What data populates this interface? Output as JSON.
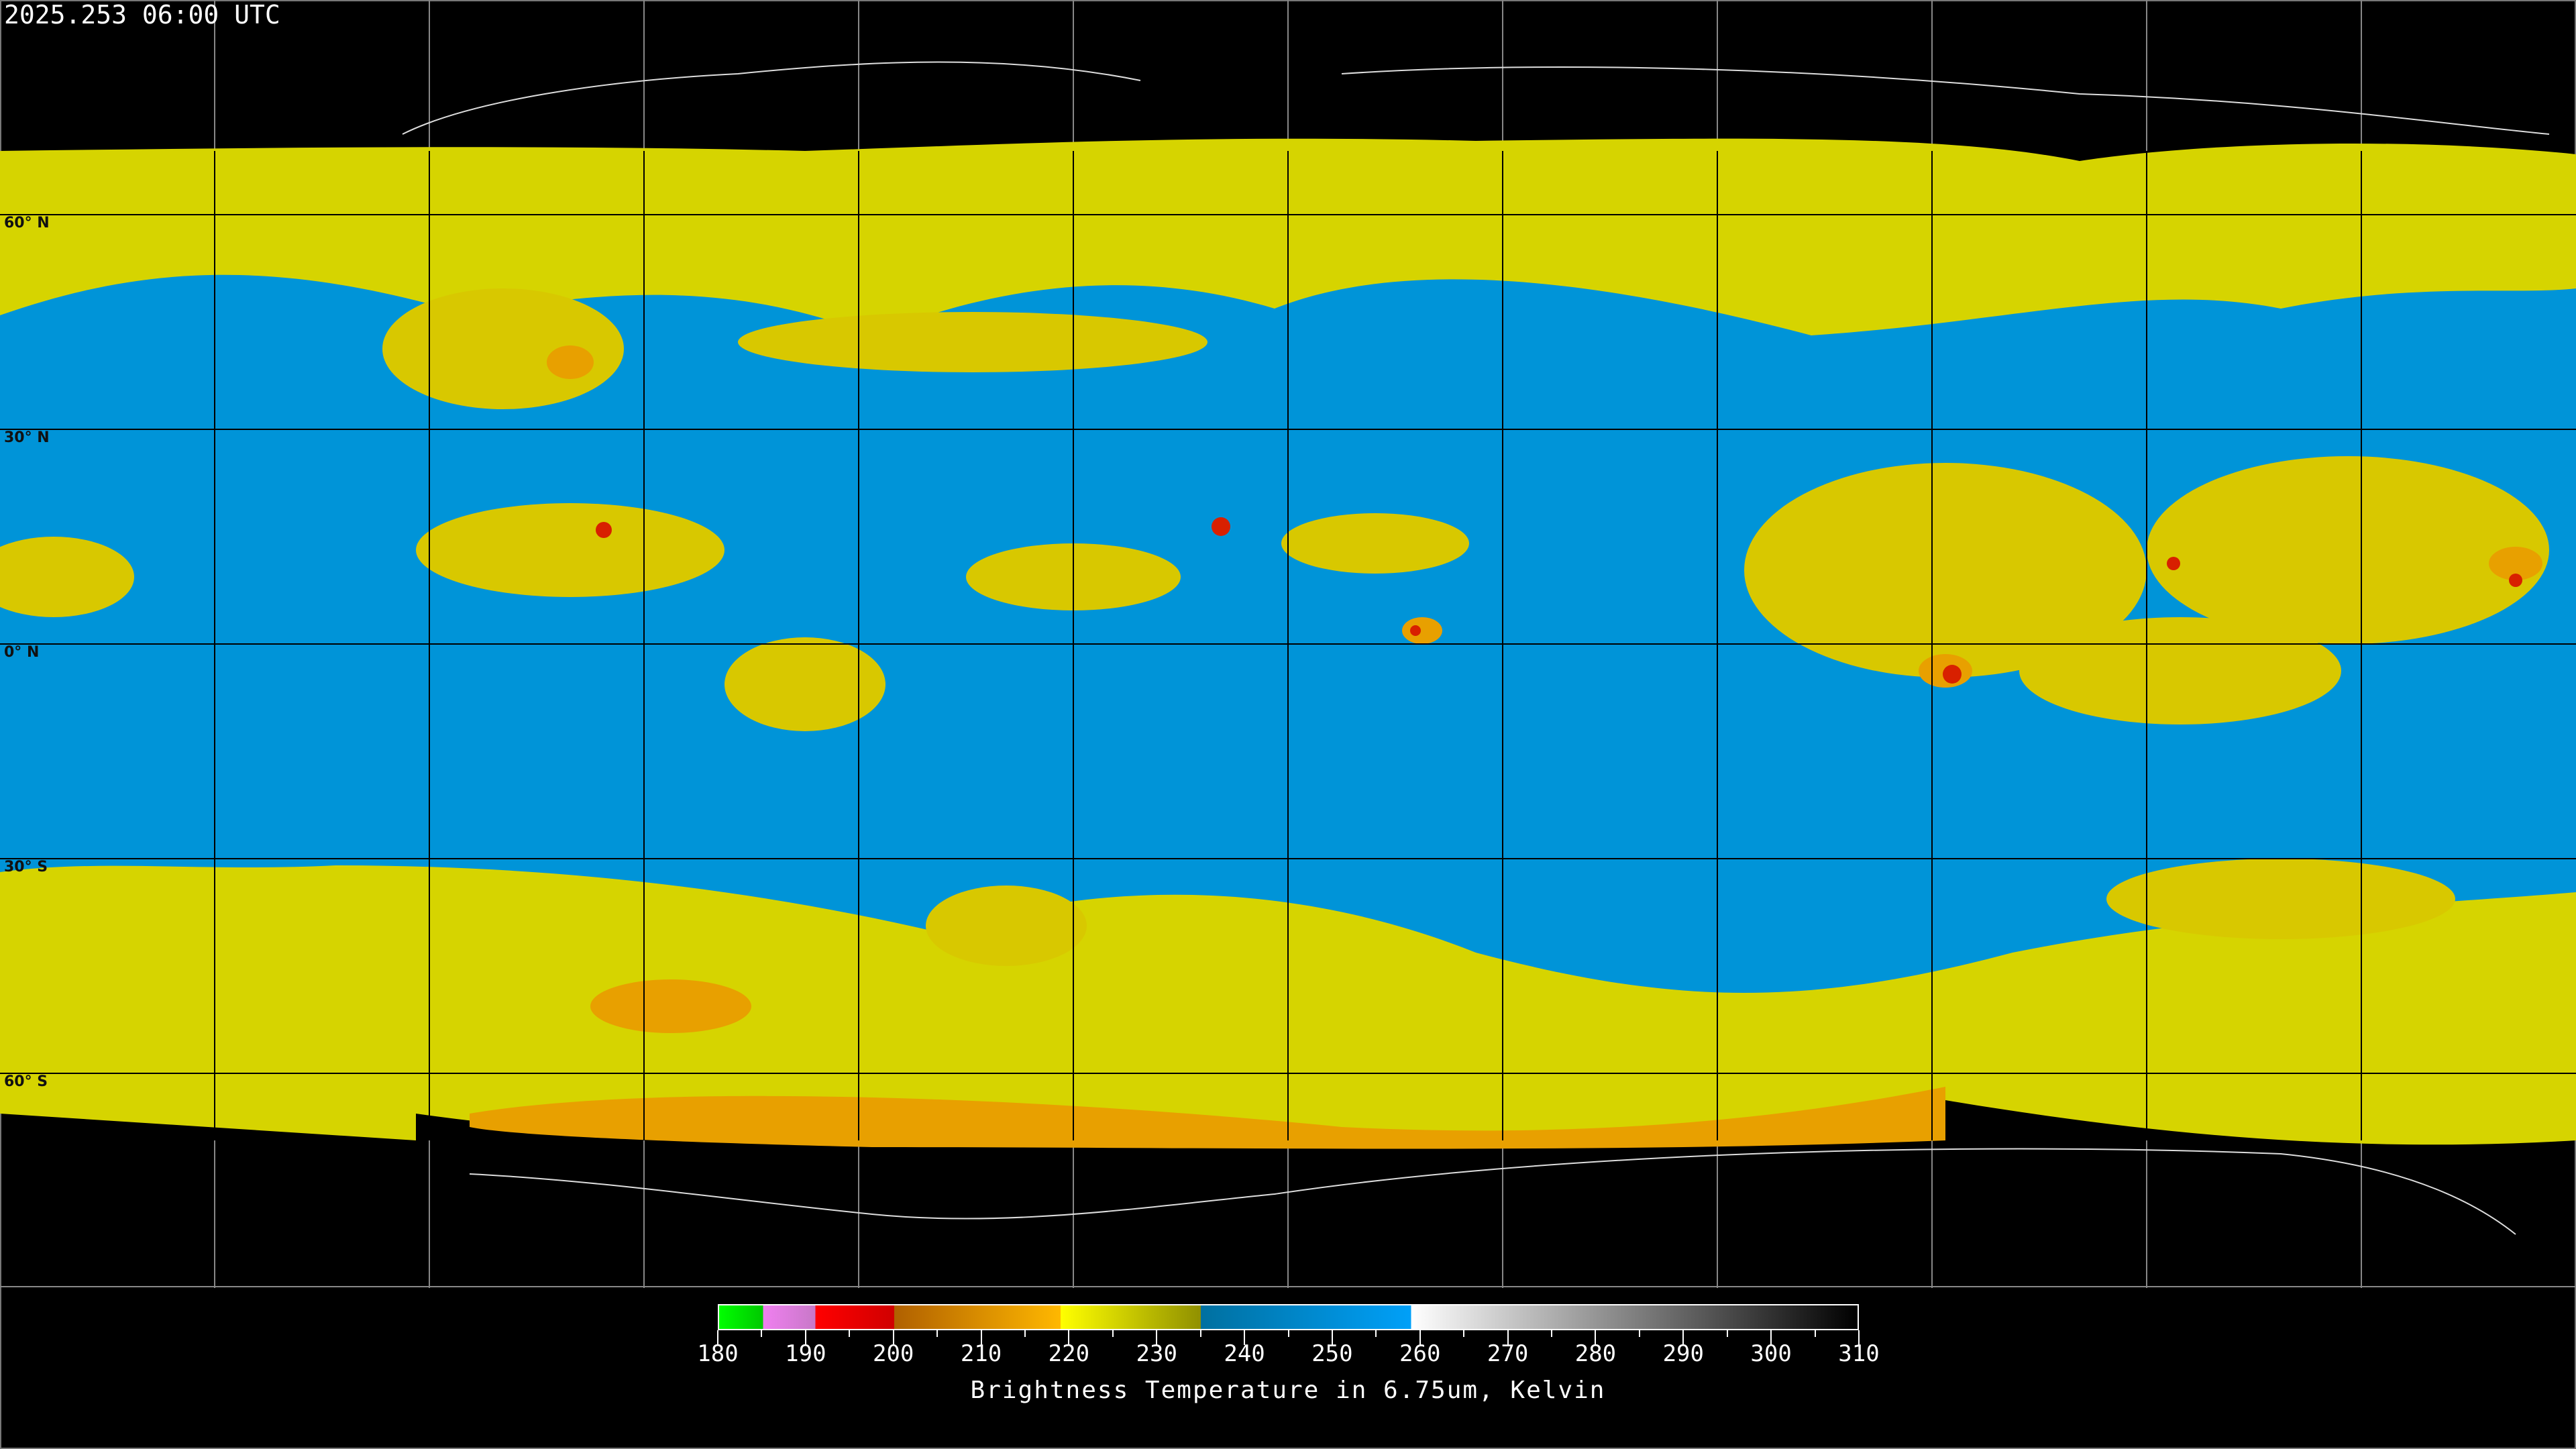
{
  "title": "2025.253 06:00 UTC",
  "latitude_labels": [
    "60° N",
    "30° N",
    "0° N",
    "30° S",
    "60° S"
  ],
  "colorbar": {
    "label": "Brightness Temperature in 6.75um, Kelvin",
    "min": 180,
    "max": 310,
    "ticks": [
      "180",
      "190",
      "200",
      "210",
      "220",
      "230",
      "240",
      "250",
      "260",
      "270",
      "280",
      "290",
      "300",
      "310"
    ],
    "segments": [
      {
        "from": 180,
        "to": 185,
        "start": "#00ff00",
        "end": "#00c800"
      },
      {
        "from": 185,
        "to": 191,
        "start": "#f080f0",
        "end": "#c878c8"
      },
      {
        "from": 191,
        "to": 200,
        "start": "#ff0000",
        "end": "#d00000"
      },
      {
        "from": 200,
        "to": 219,
        "start": "#b06000",
        "end": "#ffb800"
      },
      {
        "from": 219,
        "to": 235,
        "start": "#ffff00",
        "end": "#909000"
      },
      {
        "from": 235,
        "to": 259,
        "start": "#0070a0",
        "end": "#00a0f8"
      },
      {
        "from": 259,
        "to": 310,
        "start": "#ffffff",
        "end": "#000000"
      }
    ]
  },
  "map": {
    "projection": "equirectangular",
    "grid_spacing_deg": 30,
    "colors": {
      "background": "#000000",
      "moist": "#0096dc",
      "dry_cold": "#dcdc00",
      "cold": "#f0a000",
      "deep": "#e02000"
    }
  }
}
